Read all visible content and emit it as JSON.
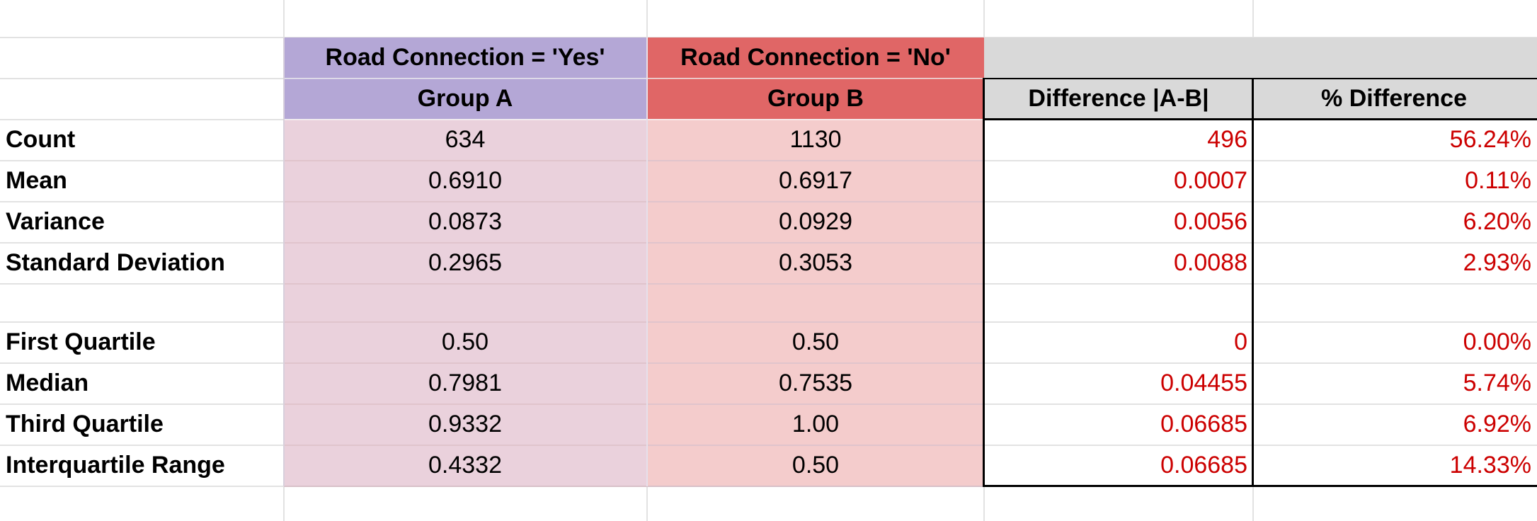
{
  "table": {
    "top_headers": {
      "group_a": "Road Connection = 'Yes'",
      "group_b": "Road Connection = 'No'"
    },
    "sub_headers": {
      "group_a": "Group A",
      "group_b": "Group B",
      "difference": "Difference |A-B|",
      "pct_difference": "% Difference"
    },
    "rows": [
      {
        "label": "Count",
        "a": "634",
        "b": "1130",
        "diff": "496",
        "pct": "56.24%"
      },
      {
        "label": "Mean",
        "a": "0.6910",
        "b": "0.6917",
        "diff": "0.0007",
        "pct": "0.11%"
      },
      {
        "label": "Variance",
        "a": "0.0873",
        "b": "0.0929",
        "diff": "0.0056",
        "pct": "6.20%"
      },
      {
        "label": "Standard Deviation",
        "a": "0.2965",
        "b": "0.3053",
        "diff": "0.0088",
        "pct": "2.93%"
      },
      {
        "label": "",
        "a": "",
        "b": "",
        "diff": "",
        "pct": ""
      },
      {
        "label": "First Quartile",
        "a": "0.50",
        "b": "0.50",
        "diff": "0",
        "pct": "0.00%"
      },
      {
        "label": "Median",
        "a": "0.7981",
        "b": "0.7535",
        "diff": "0.04455",
        "pct": "5.74%"
      },
      {
        "label": "Third Quartile",
        "a": "0.9332",
        "b": "1.00",
        "diff": "0.06685",
        "pct": "6.92%"
      },
      {
        "label": "Interquartile Range",
        "a": "0.4332",
        "b": "0.50",
        "diff": "0.06685",
        "pct": "14.33%"
      }
    ]
  },
  "colors": {
    "group_a_header": "#b4a7d6",
    "group_b_header": "#e06666",
    "group_a_fill": "#ead1dc",
    "group_b_fill": "#f4cccc",
    "diff_header_fill": "#d9d9d9",
    "diff_text": "#cc0000"
  }
}
